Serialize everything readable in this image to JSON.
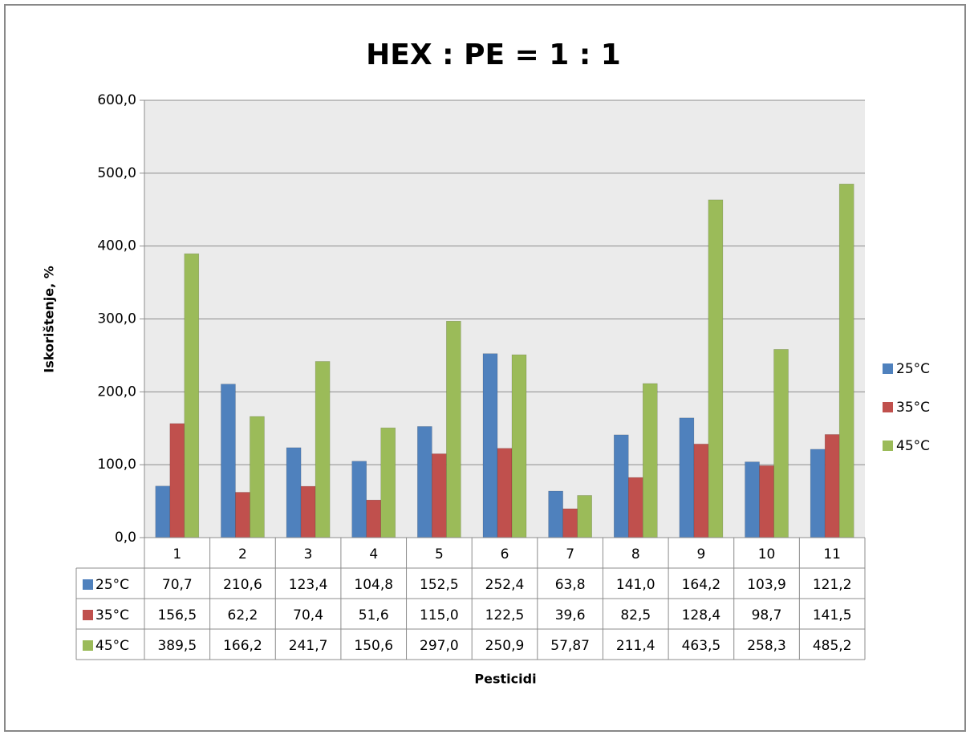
{
  "chart_data": {
    "type": "bar",
    "title": "HEX : PE = 1 : 1",
    "x_label": "Pesticidi",
    "y_label": "Iskorištenje, %",
    "categories": [
      "1",
      "2",
      "3",
      "4",
      "5",
      "6",
      "7",
      "8",
      "9",
      "10",
      "11"
    ],
    "series": [
      {
        "name": "25°C",
        "color": "#4f81bd",
        "values": [
          70.7,
          210.6,
          123.4,
          104.8,
          152.5,
          252.4,
          63.8,
          141.0,
          164.2,
          103.9,
          121.2
        ],
        "value_labels": [
          "70,7",
          "210,6",
          "123,4",
          "104,8",
          "152,5",
          "252,4",
          "63,8",
          "141,0",
          "164,2",
          "103,9",
          "121,2"
        ]
      },
      {
        "name": "35°C",
        "color": "#c0504d",
        "values": [
          156.5,
          62.2,
          70.4,
          51.6,
          115.0,
          122.5,
          39.6,
          82.5,
          128.4,
          98.7,
          141.5
        ],
        "value_labels": [
          "156,5",
          "62,2",
          "70,4",
          "51,6",
          "115,0",
          "122,5",
          "39,6",
          "82,5",
          "128,4",
          "98,7",
          "141,5"
        ]
      },
      {
        "name": "45°C",
        "color": "#9bbb59",
        "values": [
          389.5,
          166.2,
          241.7,
          150.6,
          297.0,
          250.9,
          57.87,
          211.4,
          463.5,
          258.3,
          485.2
        ],
        "value_labels": [
          "389,5",
          "166,2",
          "241,7",
          "150,6",
          "297,0",
          "250,9",
          "57,87",
          "211,4",
          "463,5",
          "258,3",
          "485,2"
        ]
      }
    ],
    "ylim": [
      0,
      600
    ],
    "yticks": [
      {
        "value": 0,
        "label": "0,0"
      },
      {
        "value": 100,
        "label": "100,0"
      },
      {
        "value": 200,
        "label": "200,0"
      },
      {
        "value": 300,
        "label": "300,0"
      },
      {
        "value": 400,
        "label": "400,0"
      },
      {
        "value": 500,
        "label": "500,0"
      },
      {
        "value": 600,
        "label": "600,0"
      }
    ],
    "grid": true,
    "legend": "right",
    "data_table": true
  }
}
